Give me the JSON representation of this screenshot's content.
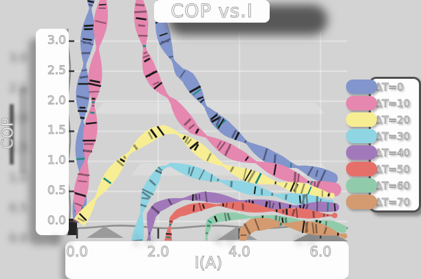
{
  "title": "COP vs.I",
  "axes": {
    "xlabel": "I(A)",
    "ylabel": "COP",
    "xticks": [
      "0.0",
      "2.0",
      "4.0",
      "6.0"
    ],
    "xtick_values": [
      0,
      2,
      4,
      6
    ],
    "yticks": [
      "3.0",
      "2.5",
      "2.0",
      "1.5",
      "1.0",
      "0.5",
      "0.0"
    ],
    "ytick_values": [
      3.0,
      2.5,
      2.0,
      1.5,
      1.0,
      0.5,
      0.0
    ]
  },
  "legend": {
    "items": [
      {
        "label": "ΔT=0",
        "color": "#8295cc"
      },
      {
        "label": "ΔT=10",
        "color": "#e687b0"
      },
      {
        "label": "ΔT=20",
        "color": "#f7ee94"
      },
      {
        "label": "ΔT=30",
        "color": "#8fd5e4"
      },
      {
        "label": "ΔT=40",
        "color": "#a179bb"
      },
      {
        "label": "ΔT=50",
        "color": "#e5706a"
      },
      {
        "label": "ΔT=60",
        "color": "#90ccab"
      },
      {
        "label": "ΔT=70",
        "color": "#d49a70"
      }
    ]
  },
  "chart_data": {
    "type": "line",
    "title": "COP vs.I",
    "xlabel": "I(A)",
    "ylabel": "COP",
    "xlim": [
      0,
      6.6
    ],
    "ylim": [
      0,
      3.0
    ],
    "xticks": [
      0,
      2,
      4,
      6
    ],
    "yticks": [
      0,
      0.5,
      1.0,
      1.5,
      2.0,
      2.5,
      3.0
    ],
    "grid": true,
    "legend_position": "center-right",
    "series": [
      {
        "name": "ΔT=0",
        "color": "#8295cc",
        "points": [
          [
            0.02,
            0.0
          ],
          [
            0.1,
            1.1
          ],
          [
            0.2,
            2.4
          ],
          [
            0.3,
            3.6
          ],
          [
            0.34,
            4.3
          ],
          [
            0.6,
            6.0
          ],
          [
            1.6,
            6.0
          ],
          [
            1.98,
            4.3
          ],
          [
            2.05,
            3.4
          ],
          [
            2.2,
            3.0
          ],
          [
            2.35,
            2.75
          ],
          [
            2.55,
            2.5
          ],
          [
            2.75,
            2.4
          ],
          [
            2.95,
            2.15
          ],
          [
            3.15,
            1.9
          ],
          [
            3.4,
            1.68
          ],
          [
            3.7,
            1.5
          ],
          [
            4.0,
            1.37
          ],
          [
            4.4,
            1.2
          ],
          [
            4.8,
            1.06
          ],
          [
            5.2,
            0.97
          ],
          [
            5.6,
            0.9
          ],
          [
            6.0,
            0.8
          ],
          [
            6.28,
            0.73
          ]
        ]
      },
      {
        "name": "ΔT=10",
        "color": "#e687b0",
        "points": [
          [
            0.02,
            0.0
          ],
          [
            0.2,
            1.0
          ],
          [
            0.4,
            2.1
          ],
          [
            0.6,
            3.2
          ],
          [
            0.72,
            4.3
          ],
          [
            0.9,
            6.0
          ],
          [
            1.3,
            6.0
          ],
          [
            1.5,
            4.0
          ],
          [
            1.56,
            3.2
          ],
          [
            1.65,
            2.8
          ],
          [
            1.78,
            2.5
          ],
          [
            1.95,
            2.3
          ],
          [
            2.15,
            2.15
          ],
          [
            2.4,
            2.0
          ],
          [
            2.65,
            1.75
          ],
          [
            2.9,
            1.55
          ],
          [
            3.2,
            1.42
          ],
          [
            3.5,
            1.28
          ],
          [
            3.85,
            1.12
          ],
          [
            4.25,
            1.0
          ],
          [
            4.7,
            0.88
          ],
          [
            5.2,
            0.76
          ],
          [
            5.7,
            0.66
          ],
          [
            6.1,
            0.59
          ],
          [
            6.35,
            0.55
          ]
        ]
      },
      {
        "name": "ΔT=20",
        "color": "#f7ee94",
        "points": [
          [
            0.02,
            0.0
          ],
          [
            0.4,
            0.35
          ],
          [
            0.8,
            0.72
          ],
          [
            1.2,
            1.05
          ],
          [
            1.6,
            1.3
          ],
          [
            1.9,
            1.45
          ],
          [
            2.15,
            1.52
          ],
          [
            2.4,
            1.49
          ],
          [
            2.65,
            1.4
          ],
          [
            2.9,
            1.28
          ],
          [
            3.2,
            1.12
          ],
          [
            3.55,
            0.98
          ],
          [
            3.9,
            0.86
          ],
          [
            4.3,
            0.75
          ],
          [
            4.8,
            0.64
          ],
          [
            5.3,
            0.55
          ],
          [
            5.8,
            0.47
          ],
          [
            6.28,
            0.42
          ]
        ]
      },
      {
        "name": "ΔT=30",
        "color": "#8fd5e4",
        "points": [
          [
            1.42,
            -0.6
          ],
          [
            1.48,
            -0.2
          ],
          [
            1.55,
            0.15
          ],
          [
            1.68,
            0.45
          ],
          [
            1.85,
            0.65
          ],
          [
            2.05,
            0.87
          ],
          [
            2.3,
            0.93
          ],
          [
            2.6,
            0.86
          ],
          [
            2.9,
            0.79
          ],
          [
            3.3,
            0.7
          ],
          [
            3.8,
            0.61
          ],
          [
            4.3,
            0.54
          ],
          [
            4.9,
            0.46
          ],
          [
            5.5,
            0.39
          ],
          [
            6.0,
            0.35
          ],
          [
            6.25,
            0.33
          ]
        ]
      },
      {
        "name": "ΔT=40",
        "color": "#a179bb",
        "points": [
          [
            1.72,
            -0.6
          ],
          [
            1.78,
            -0.2
          ],
          [
            1.85,
            0.1
          ],
          [
            2.0,
            0.22
          ],
          [
            2.3,
            0.3
          ],
          [
            2.7,
            0.36
          ],
          [
            3.1,
            0.4
          ],
          [
            3.5,
            0.38
          ],
          [
            4.0,
            0.35
          ],
          [
            4.5,
            0.31
          ],
          [
            5.0,
            0.28
          ],
          [
            5.5,
            0.26
          ],
          [
            6.0,
            0.24
          ],
          [
            6.35,
            0.22
          ]
        ]
      },
      {
        "name": "ΔT=50",
        "color": "#e5706a",
        "points": [
          [
            2.18,
            -0.55
          ],
          [
            2.24,
            -0.15
          ],
          [
            2.32,
            0.05
          ],
          [
            2.5,
            0.14
          ],
          [
            2.8,
            0.2
          ],
          [
            3.2,
            0.24
          ],
          [
            3.6,
            0.25
          ],
          [
            4.0,
            0.23
          ],
          [
            4.5,
            0.2
          ],
          [
            5.0,
            0.18
          ],
          [
            5.5,
            0.16
          ],
          [
            6.0,
            0.13
          ],
          [
            6.35,
            0.12
          ]
        ]
      },
      {
        "name": "ΔT=60",
        "color": "#90ccab",
        "points": [
          [
            3.18,
            -0.6
          ],
          [
            3.23,
            -0.2
          ],
          [
            3.3,
            -0.02
          ],
          [
            3.5,
            0.04
          ],
          [
            3.9,
            0.07
          ],
          [
            4.4,
            0.06
          ],
          [
            4.9,
            0.04
          ],
          [
            5.4,
            0.02
          ],
          [
            5.9,
            0.0
          ],
          [
            6.3,
            -0.05
          ],
          [
            6.55,
            -0.12
          ]
        ]
      },
      {
        "name": "ΔT=70",
        "color": "#d49a70",
        "points": [
          [
            4.08,
            -0.45
          ],
          [
            4.15,
            -0.18
          ],
          [
            4.35,
            -0.08
          ],
          [
            4.7,
            -0.05
          ],
          [
            5.1,
            -0.05
          ],
          [
            5.5,
            -0.07
          ],
          [
            5.9,
            -0.1
          ],
          [
            6.2,
            -0.14
          ],
          [
            6.6,
            -0.22
          ]
        ]
      }
    ]
  }
}
